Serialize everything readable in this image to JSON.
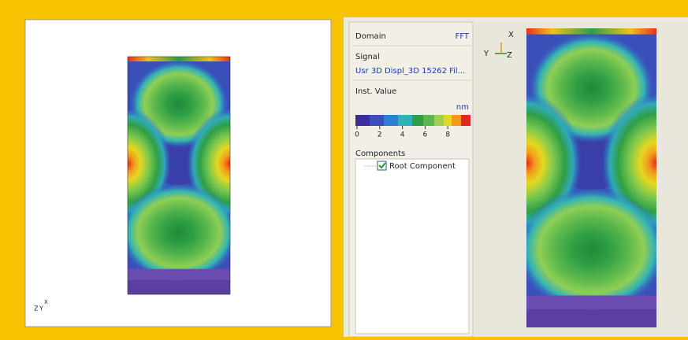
{
  "left_view": {
    "triad": [
      "Z",
      "Y",
      "X"
    ]
  },
  "panel": {
    "domain_label": "Domain",
    "domain_value": "FFT",
    "signal_label": "Signal",
    "signal_value": "Usr 3D Displ_3D 15262 Fil...",
    "value_label": "Inst. Value",
    "colorbar": {
      "unit": "nm",
      "range": [
        0,
        10
      ],
      "ticks": [
        0,
        2,
        4,
        6,
        8
      ]
    },
    "components_label": "Components",
    "components": [
      "Root Component"
    ]
  },
  "right_view": {
    "triad": [
      "X",
      "Y",
      "Z"
    ]
  }
}
